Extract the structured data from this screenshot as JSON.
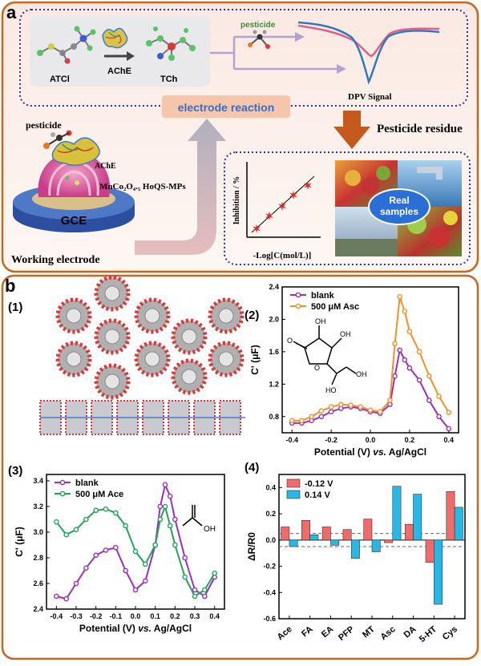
{
  "panel_a": {
    "label": "a",
    "molecule_atcl": "ATCl",
    "enzyme_ache": "AChE",
    "molecule_tch": "TCh",
    "pesticide_small": "pesticide",
    "dpv_signal": "DPV Signal",
    "electrode_reaction": "electrode reaction",
    "pesticide_residue": "Pesticide residue",
    "pesticide_big": "pesticide",
    "ache_label": "AChE",
    "material": "MnCo₂O₄.₅ HoQS-MPs",
    "gce": "GCE",
    "working_electrode": "Working  electrode",
    "inhibition_axis": "Inhibition / %",
    "log_axis": "-Log[C(mol/L)]",
    "real_samples": "Real\nsamples",
    "real_samples_line1": "Real",
    "real_samples_line2": "samples"
  },
  "panel_b": {
    "label": "b",
    "sub1": "(1)",
    "sub2": "(2)",
    "sub3": "(3)",
    "sub4": "(4)",
    "acid_oh": "OH"
  },
  "chart_data": [
    {
      "id": "b2",
      "type": "line",
      "xlabel": "Potential (V) vs. Ag/AgCl",
      "xlabel_plain": "Potential (V) ",
      "xlabel_italic": "vs.",
      "xlabel_end": " Ag/AgCl",
      "ylabel": "C' (μF)",
      "xlim": [
        -0.45,
        0.45
      ],
      "ylim": [
        0.6,
        2.4
      ],
      "xticks": [
        "-0.4",
        "-0.2",
        "0.0",
        "0.2",
        "0.4"
      ],
      "yticks": [
        "0.8",
        "1.2",
        "1.6",
        "2.0",
        "2.4"
      ],
      "x": [
        -0.4,
        -0.35,
        -0.3,
        -0.25,
        -0.2,
        -0.15,
        -0.1,
        -0.05,
        0.0,
        0.05,
        0.1,
        0.125,
        0.15,
        0.175,
        0.2,
        0.25,
        0.3,
        0.35,
        0.4
      ],
      "series": [
        {
          "name": "blank",
          "color": "#9b30b8",
          "values": [
            0.72,
            0.72,
            0.75,
            0.8,
            0.86,
            0.9,
            0.92,
            0.9,
            0.86,
            0.84,
            0.95,
            1.3,
            1.62,
            1.5,
            1.4,
            1.25,
            1.0,
            0.8,
            0.65
          ]
        },
        {
          "name": "500 μM Asc",
          "color": "#f2902a",
          "values": [
            0.75,
            0.75,
            0.8,
            0.87,
            0.92,
            0.95,
            0.94,
            0.92,
            0.88,
            0.86,
            1.0,
            1.7,
            2.28,
            2.1,
            1.85,
            1.6,
            1.3,
            1.05,
            0.85
          ]
        }
      ]
    },
    {
      "id": "b3",
      "type": "line",
      "xlabel": "Potential (V) vs. Ag/AgCl",
      "xlabel_plain": "Potential (V) ",
      "xlabel_italic": "vs.",
      "xlabel_end": " Ag/AgCl",
      "ylabel": "C' (μF)",
      "xlim": [
        -0.45,
        0.45
      ],
      "ylim": [
        2.4,
        3.45
      ],
      "xticks": [
        "-0.4",
        "-0.3",
        "-0.2",
        "-0.1",
        "0.0",
        "0.1",
        "0.2",
        "0.3",
        "0.4"
      ],
      "yticks": [
        "2.4",
        "2.6",
        "2.8",
        "3.0",
        "3.2",
        "3.4"
      ],
      "x": [
        -0.4,
        -0.35,
        -0.3,
        -0.25,
        -0.2,
        -0.15,
        -0.1,
        -0.05,
        0.0,
        0.05,
        0.1,
        0.125,
        0.15,
        0.175,
        0.2,
        0.25,
        0.3,
        0.35,
        0.4
      ],
      "series": [
        {
          "name": "blank",
          "color": "#9b30b8",
          "values": [
            2.5,
            2.48,
            2.6,
            2.72,
            2.82,
            2.86,
            2.88,
            2.7,
            2.55,
            2.62,
            2.9,
            3.2,
            3.37,
            3.28,
            3.1,
            2.8,
            2.55,
            2.5,
            2.65
          ]
        },
        {
          "name": "500 μM Ace",
          "color": "#22a35a",
          "values": [
            3.08,
            2.98,
            3.02,
            3.1,
            3.17,
            3.18,
            3.15,
            3.05,
            2.85,
            2.75,
            2.9,
            3.1,
            3.2,
            3.05,
            2.9,
            2.65,
            2.5,
            2.55,
            2.68
          ]
        }
      ]
    },
    {
      "id": "b4",
      "type": "bar",
      "ylabel": "ΔR/R0",
      "ylim": [
        -0.6,
        0.5
      ],
      "yticks": [
        "0.4",
        "0.2",
        "0.0",
        "-0.2",
        "-0.4",
        "-0.6"
      ],
      "categories": [
        "Ace",
        "FA",
        "EA",
        "PFP",
        "MT",
        "Asc",
        "DA",
        "5-HT",
        "Cys"
      ],
      "thresholds": [
        0.05,
        -0.05
      ],
      "series": [
        {
          "name": "-0.12 V",
          "color": "#f26b6b",
          "values": [
            0.1,
            0.15,
            0.1,
            0.08,
            0.16,
            -0.02,
            0.12,
            -0.17,
            0.37
          ]
        },
        {
          "name": "0.14 V",
          "color": "#29b7e6",
          "values": [
            -0.05,
            0.04,
            -0.04,
            -0.14,
            -0.09,
            0.41,
            0.35,
            -0.49,
            0.25
          ]
        }
      ]
    }
  ]
}
